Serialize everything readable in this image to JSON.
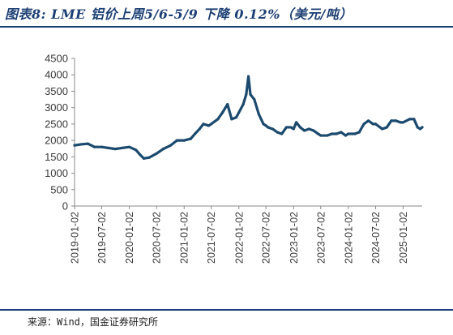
{
  "title": "图表8: LME 铝价上周5/6-5/9 下降 0.12%（美元/吨）",
  "source": "来源：Wind，国金证券研究所",
  "chart_data": {
    "type": "line",
    "title": "图表8: LME 铝价上周5/6-5/9 下降 0.12%（美元/吨）",
    "xlabel": "",
    "ylabel": "",
    "ylim": [
      0,
      4500
    ],
    "yticks": [
      0,
      500,
      1000,
      1500,
      2000,
      2500,
      3000,
      3500,
      4000,
      4500
    ],
    "xticks": [
      "2019-01-02",
      "2019-07-02",
      "2020-01-02",
      "2020-07-02",
      "2021-01-02",
      "2021-07-02",
      "2022-01-02",
      "2022-07-02",
      "2023-01-02",
      "2023-07-02",
      "2024-01-02",
      "2024-07-02",
      "2025-01-02"
    ],
    "xlim": [
      "2019-01-02",
      "2025-05-09"
    ],
    "grid": false,
    "legend": "none",
    "line_color": "#1c4a6e",
    "series": [
      {
        "x": [
          "2019-01-02",
          "2019-02-15",
          "2019-04-01",
          "2019-05-15",
          "2019-07-02",
          "2019-08-15",
          "2019-10-01",
          "2019-11-15",
          "2020-01-02",
          "2020-02-15",
          "2020-03-15",
          "2020-04-08",
          "2020-05-15",
          "2020-07-02",
          "2020-08-15",
          "2020-10-01",
          "2020-11-15",
          "2021-01-02",
          "2021-02-15",
          "2021-03-15",
          "2021-04-15",
          "2021-05-10",
          "2021-06-15",
          "2021-07-02",
          "2021-08-15",
          "2021-09-15",
          "2021-10-18",
          "2021-11-15",
          "2021-12-15",
          "2022-01-02",
          "2022-01-31",
          "2022-02-20",
          "2022-03-07",
          "2022-03-20",
          "2022-04-15",
          "2022-05-15",
          "2022-06-15",
          "2022-07-02",
          "2022-07-15",
          "2022-08-15",
          "2022-09-15",
          "2022-10-15",
          "2022-11-15",
          "2022-12-15",
          "2023-01-02",
          "2023-01-20",
          "2023-02-15",
          "2023-03-15",
          "2023-04-15",
          "2023-05-15",
          "2023-06-15",
          "2023-07-02",
          "2023-08-15",
          "2023-09-15",
          "2023-10-15",
          "2023-11-15",
          "2023-12-15",
          "2024-01-02",
          "2024-02-15",
          "2024-03-15",
          "2024-04-15",
          "2024-05-15",
          "2024-06-15",
          "2024-07-02",
          "2024-08-15",
          "2024-09-15",
          "2024-10-15",
          "2024-11-15",
          "2024-12-15",
          "2025-01-02",
          "2025-02-15",
          "2025-03-15",
          "2025-04-08",
          "2025-04-25",
          "2025-05-09"
        ],
        "values": [
          1850,
          1880,
          1900,
          1800,
          1800,
          1770,
          1740,
          1770,
          1800,
          1710,
          1560,
          1450,
          1480,
          1600,
          1740,
          1840,
          2000,
          2000,
          2050,
          2200,
          2350,
          2500,
          2450,
          2500,
          2650,
          2850,
          3100,
          2650,
          2700,
          2850,
          3100,
          3400,
          3950,
          3400,
          3250,
          2800,
          2500,
          2450,
          2400,
          2350,
          2250,
          2200,
          2400,
          2400,
          2350,
          2550,
          2400,
          2300,
          2350,
          2300,
          2200,
          2150,
          2150,
          2200,
          2200,
          2250,
          2150,
          2200,
          2200,
          2250,
          2500,
          2600,
          2500,
          2500,
          2350,
          2400,
          2600,
          2600,
          2550,
          2550,
          2650,
          2650,
          2400,
          2350,
          2400
        ]
      }
    ]
  }
}
